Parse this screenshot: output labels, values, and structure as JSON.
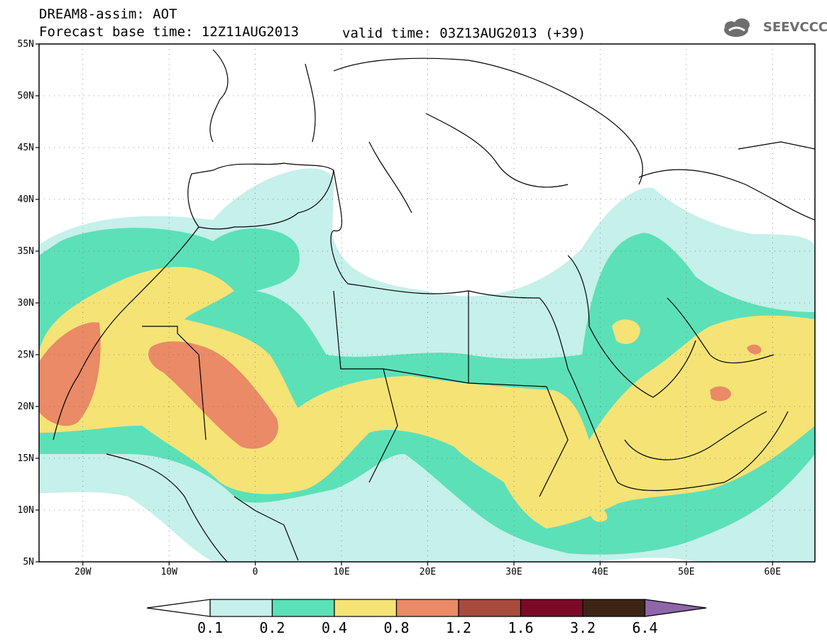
{
  "header": {
    "title": "DREAM8-assim: AOT",
    "forecast": "Forecast base time: 12Z11AUG2013",
    "valid": "valid time: 03Z13AUG2013 (+39)",
    "logo_text": "SEEVCCC"
  },
  "map": {
    "lat_labels": [
      "55N",
      "50N",
      "45N",
      "40N",
      "35N",
      "30N",
      "25N",
      "20N",
      "15N",
      "10N",
      "5N"
    ],
    "lon_labels": [
      "20W",
      "10W",
      "0",
      "10E",
      "20E",
      "30E",
      "40E",
      "50E",
      "60E"
    ],
    "lat_range": [
      5,
      55
    ],
    "lon_range": [
      -25,
      65
    ]
  },
  "legend": {
    "levels": [
      "0.1",
      "0.2",
      "0.4",
      "0.8",
      "1.2",
      "1.6",
      "3.2",
      "6.4"
    ],
    "colors": [
      "#ffffff",
      "#c6f0ea",
      "#5ce0b8",
      "#f5e376",
      "#ea8a66",
      "#a84a3e",
      "#7a0a28",
      "#3d2515",
      "#8e66aa"
    ]
  }
}
